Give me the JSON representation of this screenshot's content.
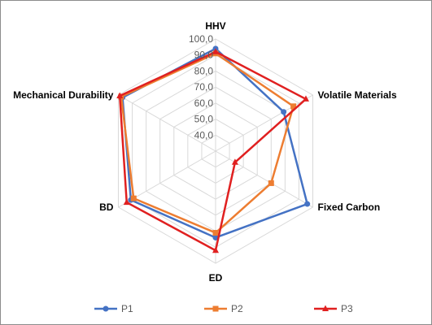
{
  "chart_data": {
    "type": "radar",
    "axes": [
      "HHV",
      "Volatile Materials",
      "Fixed Carbon",
      "ED",
      "BD",
      "Mechanical Durability"
    ],
    "ticks": [
      "40,0",
      "50,0",
      "60,0",
      "70,0",
      "80,0",
      "90,0",
      "100,0"
    ],
    "tick_values": [
      40,
      50,
      60,
      70,
      80,
      90,
      100
    ],
    "range": [
      30,
      100
    ],
    "grid": true,
    "legend_position": "bottom",
    "series": [
      {
        "name": "P1",
        "color": "#4472C4",
        "marker": "circle",
        "values": [
          94,
          79,
          96,
          84,
          91,
          97
        ]
      },
      {
        "name": "P2",
        "color": "#ED7D31",
        "marker": "square",
        "values": [
          91,
          86,
          70,
          81,
          89,
          98
        ]
      },
      {
        "name": "P3",
        "color": "#E02020",
        "marker": "triangle",
        "values": [
          92,
          95,
          44,
          92,
          94,
          99
        ]
      }
    ]
  }
}
